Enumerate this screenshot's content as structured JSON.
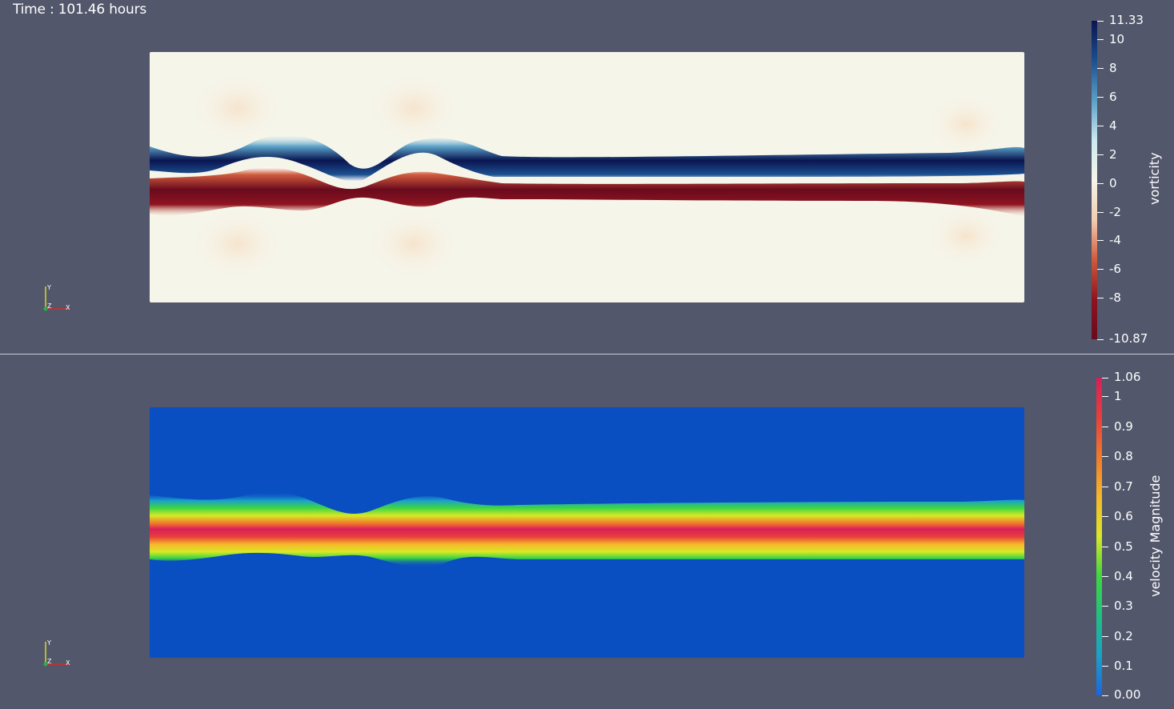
{
  "time_label": "Time : 101.46 hours",
  "top_view": {
    "colorbar": {
      "title": "vorticity",
      "max_label": "11.33",
      "min_label": "-10.87",
      "ticks": [
        "10",
        "8",
        "6",
        "4",
        "2",
        "0",
        "-2",
        "-4",
        "-6",
        "-8"
      ],
      "colors": [
        "#0a1550",
        "#1c4f8f",
        "#5aa0c7",
        "#cde9f0",
        "#f7f5ea",
        "#f4cdb0",
        "#cf5a3c",
        "#8e1420",
        "#6a0a1e"
      ]
    },
    "axes": {
      "y": "Y",
      "z": "Z",
      "x": "X"
    }
  },
  "bottom_view": {
    "colorbar": {
      "title": "velocity Magnitude",
      "max_label": "1.06",
      "min_label": "0.00",
      "ticks": [
        "1",
        "0.9",
        "0.8",
        "0.7",
        "0.6",
        "0.5",
        "0.4",
        "0.3",
        "0.2",
        "0.1"
      ],
      "colors": [
        "#1a66e0",
        "#1ba0c8",
        "#20c080",
        "#3fd640",
        "#d8e826",
        "#f6b82a",
        "#f27a2a",
        "#e8403a",
        "#d81e5a"
      ]
    },
    "axes": {
      "y": "Y",
      "z": "Z",
      "x": "X"
    }
  }
}
